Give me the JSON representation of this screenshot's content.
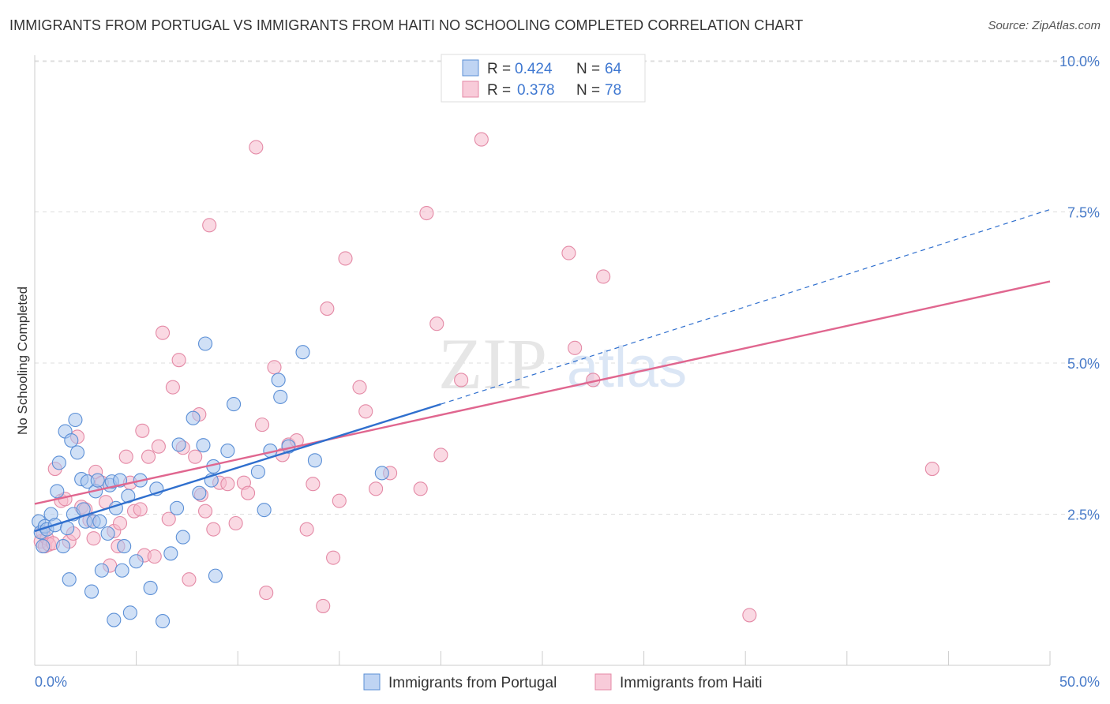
{
  "title": "IMMIGRANTS FROM PORTUGAL VS IMMIGRANTS FROM HAITI NO SCHOOLING COMPLETED CORRELATION CHART",
  "source": "Source: ZipAtlas.com",
  "watermark": {
    "zip": "ZIP",
    "atlas": "atlas"
  },
  "colors": {
    "portugal_fill": "#a9c6ef",
    "portugal_stroke": "#5b8fd6",
    "portugal_line": "#2f6fce",
    "haiti_fill": "#f6b9cc",
    "haiti_stroke": "#e48aa6",
    "haiti_line": "#e0668f",
    "tick_text": "#4a7cc9",
    "grid": "#dddddd"
  },
  "legend": {
    "rows": [
      {
        "r_label": "R =",
        "r_value": "0.424",
        "n_label": "N =",
        "n_value": "64"
      },
      {
        "r_label": "R =",
        "r_value": "0.378",
        "n_label": "N =",
        "n_value": "78"
      }
    ]
  },
  "chart_data": {
    "type": "scatter",
    "title": "IMMIGRANTS FROM PORTUGAL VS IMMIGRANTS FROM HAITI NO SCHOOLING COMPLETED CORRELATION CHART",
    "xlabel": "",
    "ylabel": "No Schooling Completed",
    "xlim": [
      0,
      50
    ],
    "ylim": [
      0,
      10.4
    ],
    "x_tick_labels": [
      "0.0%",
      "50.0%"
    ],
    "y_ticks": [
      2.5,
      5.0,
      7.5,
      10.0
    ],
    "y_tick_labels": [
      "2.5%",
      "5.0%",
      "7.5%",
      "10.0%"
    ],
    "grid": true,
    "legend_position": "top-center",
    "series": [
      {
        "name": "Immigrants from Portugal",
        "r": 0.424,
        "n": 64,
        "trend": {
          "x0": 0,
          "y0": 2.22,
          "x1": 20,
          "y1": 4.32,
          "dashed_to_x": 50,
          "dashed_to_y": 7.54
        },
        "points": [
          [
            0.2,
            2.38
          ],
          [
            0.3,
            2.2
          ],
          [
            0.4,
            1.97
          ],
          [
            0.5,
            2.3
          ],
          [
            0.6,
            2.25
          ],
          [
            0.8,
            2.5
          ],
          [
            1.0,
            2.32
          ],
          [
            1.1,
            2.88
          ],
          [
            1.2,
            3.35
          ],
          [
            1.4,
            1.97
          ],
          [
            1.5,
            3.87
          ],
          [
            1.6,
            2.27
          ],
          [
            1.7,
            1.42
          ],
          [
            1.8,
            3.72
          ],
          [
            1.9,
            2.5
          ],
          [
            2.0,
            4.06
          ],
          [
            2.1,
            3.52
          ],
          [
            2.3,
            3.08
          ],
          [
            2.4,
            2.58
          ],
          [
            2.5,
            2.38
          ],
          [
            2.6,
            3.04
          ],
          [
            2.8,
            1.22
          ],
          [
            2.9,
            2.38
          ],
          [
            3.0,
            2.88
          ],
          [
            3.1,
            3.06
          ],
          [
            3.2,
            2.38
          ],
          [
            3.3,
            1.57
          ],
          [
            3.6,
            2.18
          ],
          [
            3.7,
            2.98
          ],
          [
            3.8,
            3.04
          ],
          [
            3.9,
            0.75
          ],
          [
            4.0,
            2.6
          ],
          [
            4.2,
            3.06
          ],
          [
            4.3,
            1.57
          ],
          [
            4.4,
            1.97
          ],
          [
            4.6,
            2.8
          ],
          [
            4.7,
            0.87
          ],
          [
            5.0,
            1.72
          ],
          [
            5.2,
            3.06
          ],
          [
            5.7,
            1.28
          ],
          [
            6.0,
            2.92
          ],
          [
            6.3,
            0.73
          ],
          [
            6.7,
            1.85
          ],
          [
            7.0,
            2.6
          ],
          [
            7.1,
            3.65
          ],
          [
            7.3,
            2.12
          ],
          [
            7.8,
            4.09
          ],
          [
            8.1,
            2.85
          ],
          [
            8.3,
            3.64
          ],
          [
            8.4,
            5.32
          ],
          [
            8.7,
            3.06
          ],
          [
            8.8,
            3.29
          ],
          [
            8.9,
            1.48
          ],
          [
            9.5,
            3.55
          ],
          [
            9.8,
            4.32
          ],
          [
            11.0,
            3.2
          ],
          [
            11.3,
            2.57
          ],
          [
            11.6,
            3.55
          ],
          [
            12.0,
            4.72
          ],
          [
            12.1,
            4.44
          ],
          [
            12.5,
            3.62
          ],
          [
            13.2,
            5.18
          ],
          [
            13.8,
            3.39
          ],
          [
            17.1,
            3.18
          ]
        ]
      },
      {
        "name": "Immigrants from Haiti",
        "r": 0.378,
        "n": 78,
        "trend": {
          "x0": 0,
          "y0": 2.67,
          "x1": 50,
          "y1": 6.35
        },
        "points": [
          [
            0.3,
            2.05
          ],
          [
            0.4,
            2.2
          ],
          [
            0.5,
            1.97
          ],
          [
            0.6,
            2.1
          ],
          [
            0.7,
            2.0
          ],
          [
            0.9,
            2.02
          ],
          [
            1.0,
            3.25
          ],
          [
            1.3,
            2.72
          ],
          [
            1.5,
            2.75
          ],
          [
            1.7,
            2.05
          ],
          [
            1.9,
            2.18
          ],
          [
            2.1,
            3.78
          ],
          [
            2.3,
            2.62
          ],
          [
            2.5,
            2.58
          ],
          [
            2.7,
            2.4
          ],
          [
            2.9,
            2.1
          ],
          [
            3.0,
            3.2
          ],
          [
            3.3,
            3.02
          ],
          [
            3.5,
            2.7
          ],
          [
            3.7,
            1.65
          ],
          [
            3.9,
            2.22
          ],
          [
            4.1,
            1.97
          ],
          [
            4.2,
            2.35
          ],
          [
            4.5,
            3.45
          ],
          [
            4.7,
            3.02
          ],
          [
            4.9,
            2.55
          ],
          [
            5.2,
            2.58
          ],
          [
            5.3,
            3.88
          ],
          [
            5.4,
            1.82
          ],
          [
            5.6,
            3.45
          ],
          [
            5.9,
            1.8
          ],
          [
            6.1,
            3.62
          ],
          [
            6.3,
            5.5
          ],
          [
            6.6,
            2.42
          ],
          [
            6.8,
            4.6
          ],
          [
            7.1,
            5.05
          ],
          [
            7.3,
            3.6
          ],
          [
            7.6,
            1.42
          ],
          [
            7.9,
            3.45
          ],
          [
            8.1,
            4.15
          ],
          [
            8.2,
            2.82
          ],
          [
            8.4,
            2.55
          ],
          [
            8.6,
            7.28
          ],
          [
            8.8,
            2.25
          ],
          [
            9.1,
            3.02
          ],
          [
            9.5,
            3.0
          ],
          [
            9.9,
            2.35
          ],
          [
            10.3,
            3.02
          ],
          [
            10.5,
            2.85
          ],
          [
            10.9,
            8.57
          ],
          [
            11.2,
            3.98
          ],
          [
            11.4,
            1.2
          ],
          [
            11.8,
            4.93
          ],
          [
            12.2,
            3.48
          ],
          [
            12.5,
            3.65
          ],
          [
            12.9,
            3.72
          ],
          [
            13.4,
            2.25
          ],
          [
            13.7,
            3.0
          ],
          [
            14.2,
            0.98
          ],
          [
            14.4,
            5.9
          ],
          [
            14.7,
            1.78
          ],
          [
            15.0,
            2.72
          ],
          [
            15.3,
            6.73
          ],
          [
            16.0,
            4.6
          ],
          [
            16.3,
            4.2
          ],
          [
            16.8,
            2.92
          ],
          [
            17.5,
            3.18
          ],
          [
            19.0,
            2.92
          ],
          [
            19.3,
            7.48
          ],
          [
            19.8,
            5.65
          ],
          [
            20.0,
            3.48
          ],
          [
            21.0,
            4.72
          ],
          [
            22.0,
            8.7
          ],
          [
            26.3,
            6.82
          ],
          [
            26.6,
            5.25
          ],
          [
            27.5,
            4.72
          ],
          [
            28.0,
            6.43
          ],
          [
            35.2,
            0.83
          ],
          [
            44.2,
            3.25
          ]
        ]
      }
    ]
  },
  "bottom_legend": [
    {
      "label": "Immigrants from Portugal"
    },
    {
      "label": "Immigrants from Haiti"
    }
  ]
}
